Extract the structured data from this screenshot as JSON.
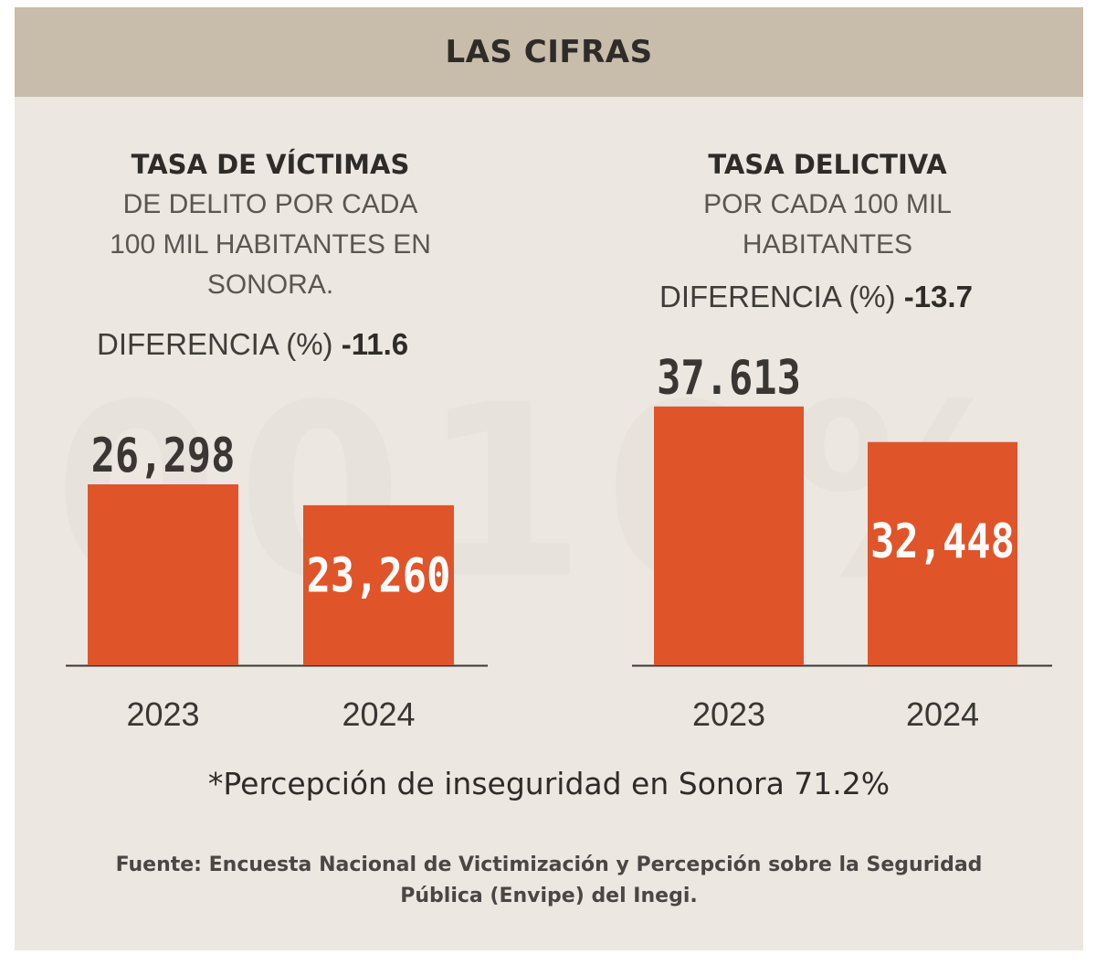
{
  "header": {
    "title": "LAS CIFRAS"
  },
  "panels": [
    {
      "title_bold": "TASA DE VÍCTIMAS",
      "subtitle_lines": [
        "DE DELITO POR CADA",
        "100 MIL HABITANTES EN",
        "SONORA."
      ],
      "diff_label": "DIFERENCIA (%)",
      "diff_value": "-11.6"
    },
    {
      "title_bold": "TASA DELICTIVA",
      "subtitle_lines": [
        "POR CADA 100 MIL",
        "HABITANTES"
      ],
      "diff_label": "DIFERENCIA (%)",
      "diff_value": "-13.7"
    }
  ],
  "chart_data": [
    {
      "type": "bar",
      "title": "TASA DE VÍCTIMAS DE DELITO POR CADA 100 MIL HABITANTES EN SONORA.",
      "categories": [
        "2023",
        "2024"
      ],
      "values": [
        26298,
        23260
      ],
      "value_labels": [
        "26,298",
        "23,260"
      ],
      "xlabel": "",
      "ylabel": "",
      "grid": false,
      "bar_color": "#e0542a"
    },
    {
      "type": "bar",
      "title": "TASA DELICTIVA POR CADA 100 MIL HABITANTES",
      "categories": [
        "2023",
        "2024"
      ],
      "values": [
        37613,
        32448
      ],
      "value_labels": [
        "37.613",
        "32,448"
      ],
      "xlabel": "",
      "ylabel": "",
      "grid": false,
      "bar_color": "#e0542a"
    }
  ],
  "footnote": "*Percepción de inseguridad en Sonora 71.2%",
  "source": "Fuente: Encuesta Nacional de Victimización y Percepción sobre la Seguridad Pública (Envipe) del Inegi."
}
